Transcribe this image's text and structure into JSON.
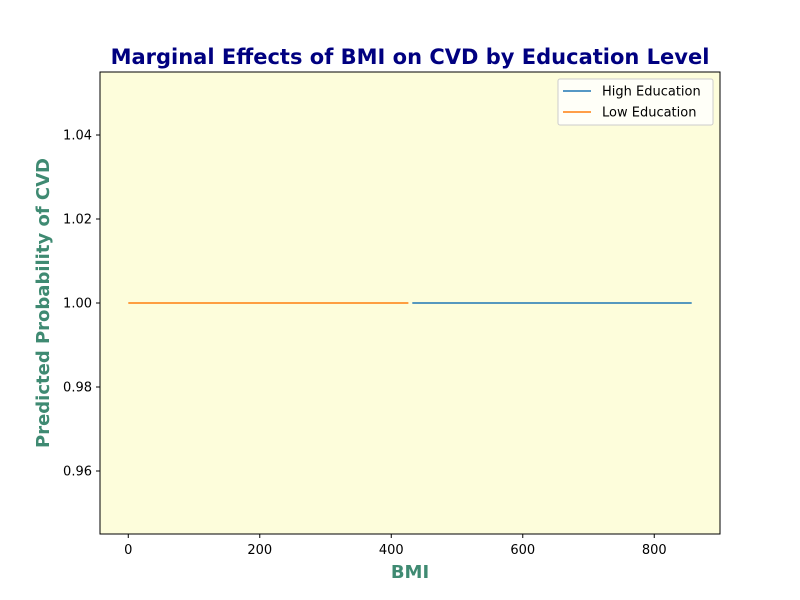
{
  "chart_data": {
    "type": "line",
    "title": "Marginal Effects of BMI on CVD by Education Level",
    "xlabel": "BMI",
    "ylabel": "Predicted Probability of CVD",
    "xlim": [
      -43,
      900
    ],
    "ylim": [
      0.945,
      1.055
    ],
    "x_ticks": [
      0,
      200,
      400,
      600,
      800
    ],
    "y_ticks": [
      0.96,
      0.98,
      1.0,
      1.02,
      1.04
    ],
    "x_tick_labels": [
      "0",
      "200",
      "400",
      "600",
      "800"
    ],
    "y_tick_labels": [
      "0.96",
      "0.98",
      "1.00",
      "1.02",
      "1.04"
    ],
    "legend_position": "top-right",
    "series": [
      {
        "name": "High Education",
        "color": "#1f77b4",
        "x": [
          432,
          857
        ],
        "y": [
          1.0,
          1.0
        ]
      },
      {
        "name": "Low Education",
        "color": "#ff7f0e",
        "x": [
          0,
          426
        ],
        "y": [
          1.0,
          1.0
        ]
      }
    ],
    "colors": {
      "plot_background": "#fdfddb",
      "title": "#000080",
      "axis_label": "#3f8a72"
    }
  }
}
